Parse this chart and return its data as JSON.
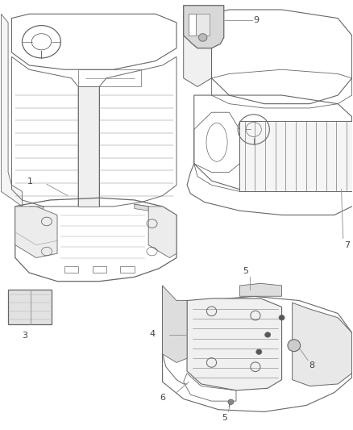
{
  "bg_color": "#ffffff",
  "line_color": "#666666",
  "dark_color": "#222222",
  "label_color": "#444444",
  "fig_width": 4.38,
  "fig_height": 5.33,
  "dpi": 100
}
